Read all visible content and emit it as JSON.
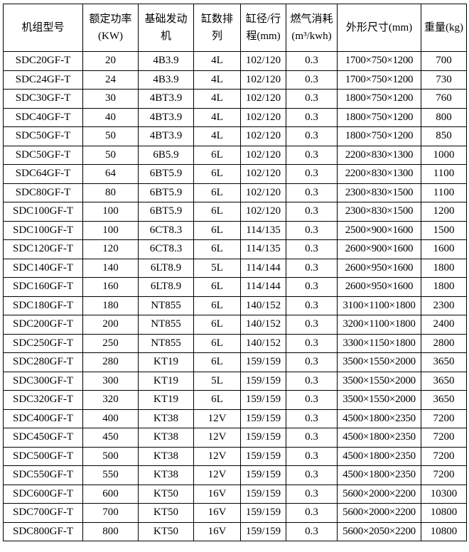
{
  "table": {
    "headers": [
      [
        "机组型号"
      ],
      [
        "额定功率",
        "(KW)"
      ],
      [
        "基础发动",
        "机"
      ],
      [
        "缸数排",
        "列"
      ],
      [
        "缸径/行",
        "程(mm)"
      ],
      [
        "燃气消耗",
        "(m³/kwh)"
      ],
      [
        "外形尺寸(mm)"
      ],
      [
        "重量(kg)"
      ]
    ],
    "rows": [
      [
        "SDC20GF-T",
        "20",
        "4B3.9",
        "4L",
        "102/120",
        "0.3",
        "1700×750×1200",
        "700"
      ],
      [
        "SDC24GF-T",
        "24",
        "4B3.9",
        "4L",
        "102/120",
        "0.3",
        "1700×750×1200",
        "730"
      ],
      [
        "SDC30GF-T",
        "30",
        "4BT3.9",
        "4L",
        "102/120",
        "0.3",
        "1800×750×1200",
        "760"
      ],
      [
        "SDC40GF-T",
        "40",
        "4BT3.9",
        "4L",
        "102/120",
        "0.3",
        "1800×750×1200",
        "800"
      ],
      [
        "SDC50GF-T",
        "50",
        "4BT3.9",
        "4L",
        "102/120",
        "0.3",
        "1800×750×1200",
        "850"
      ],
      [
        "SDC50GF-T",
        "50",
        "6B5.9",
        "6L",
        "102/120",
        "0.3",
        "2200×830×1300",
        "1000"
      ],
      [
        "SDC64GF-T",
        "64",
        "6BT5.9",
        "6L",
        "102/120",
        "0.3",
        "2200×830×1300",
        "1100"
      ],
      [
        "SDC80GF-T",
        "80",
        "6BT5.9",
        "6L",
        "102/120",
        "0.3",
        "2300×830×1500",
        "1100"
      ],
      [
        "SDC100GF-T",
        "100",
        "6BT5.9",
        "6L",
        "102/120",
        "0.3",
        "2300×830×1500",
        "1200"
      ],
      [
        "SDC100GF-T",
        "100",
        "6CT8.3",
        "6L",
        "114/135",
        "0.3",
        "2500×900×1600",
        "1500"
      ],
      [
        "SDC120GF-T",
        "120",
        "6CT8.3",
        "6L",
        "114/135",
        "0.3",
        "2600×900×1600",
        "1600"
      ],
      [
        "SDC140GF-T",
        "140",
        "6LT8.9",
        "5L",
        "114/144",
        "0.3",
        "2600×950×1600",
        "1800"
      ],
      [
        "SDC160GF-T",
        "160",
        "6LT8.9",
        "6L",
        "114/144",
        "0.3",
        "2600×950×1600",
        "1800"
      ],
      [
        "SDC180GF-T",
        "180",
        "NT855",
        "6L",
        "140/152",
        "0.3",
        "3100×1100×1800",
        "2300"
      ],
      [
        "SDC200GF-T",
        "200",
        "NT855",
        "6L",
        "140/152",
        "0.3",
        "3200×1100×1800",
        "2400"
      ],
      [
        "SDC250GF-T",
        "250",
        "NT855",
        "6L",
        "140/152",
        "0.3",
        "3300×1150×1800",
        "2800"
      ],
      [
        "SDC280GF-T",
        "280",
        "KT19",
        "6L",
        "159/159",
        "0.3",
        "3500×1550×2000",
        "3650"
      ],
      [
        "SDC300GF-T",
        "300",
        "KT19",
        "5L",
        "159/159",
        "0.3",
        "3500×1550×2000",
        "3650"
      ],
      [
        "SDC320GF-T",
        "320",
        "KT19",
        "6L",
        "159/159",
        "0.3",
        "3500×1550×2000",
        "3650"
      ],
      [
        "SDC400GF-T",
        "400",
        "KT38",
        "12V",
        "159/159",
        "0.3",
        "4500×1800×2350",
        "7200"
      ],
      [
        "SDC450GF-T",
        "450",
        "KT38",
        "12V",
        "159/159",
        "0.3",
        "4500×1800×2350",
        "7200"
      ],
      [
        "SDC500GF-T",
        "500",
        "KT38",
        "12V",
        "159/159",
        "0.3",
        "4500×1800×2350",
        "7200"
      ],
      [
        "SDC550GF-T",
        "550",
        "KT38",
        "12V",
        "159/159",
        "0.3",
        "4500×1800×2350",
        "7200"
      ],
      [
        "SDC600GF-T",
        "600",
        "KT50",
        "16V",
        "159/159",
        "0.3",
        "5600×2000×2200",
        "10300"
      ],
      [
        "SDC700GF-T",
        "700",
        "KT50",
        "16V",
        "159/159",
        "0.3",
        "5600×2000×2200",
        "10800"
      ],
      [
        "SDC800GF-T",
        "800",
        "KT50",
        "16V",
        "159/159",
        "0.3",
        "5600×2050×2200",
        "10800"
      ]
    ]
  }
}
